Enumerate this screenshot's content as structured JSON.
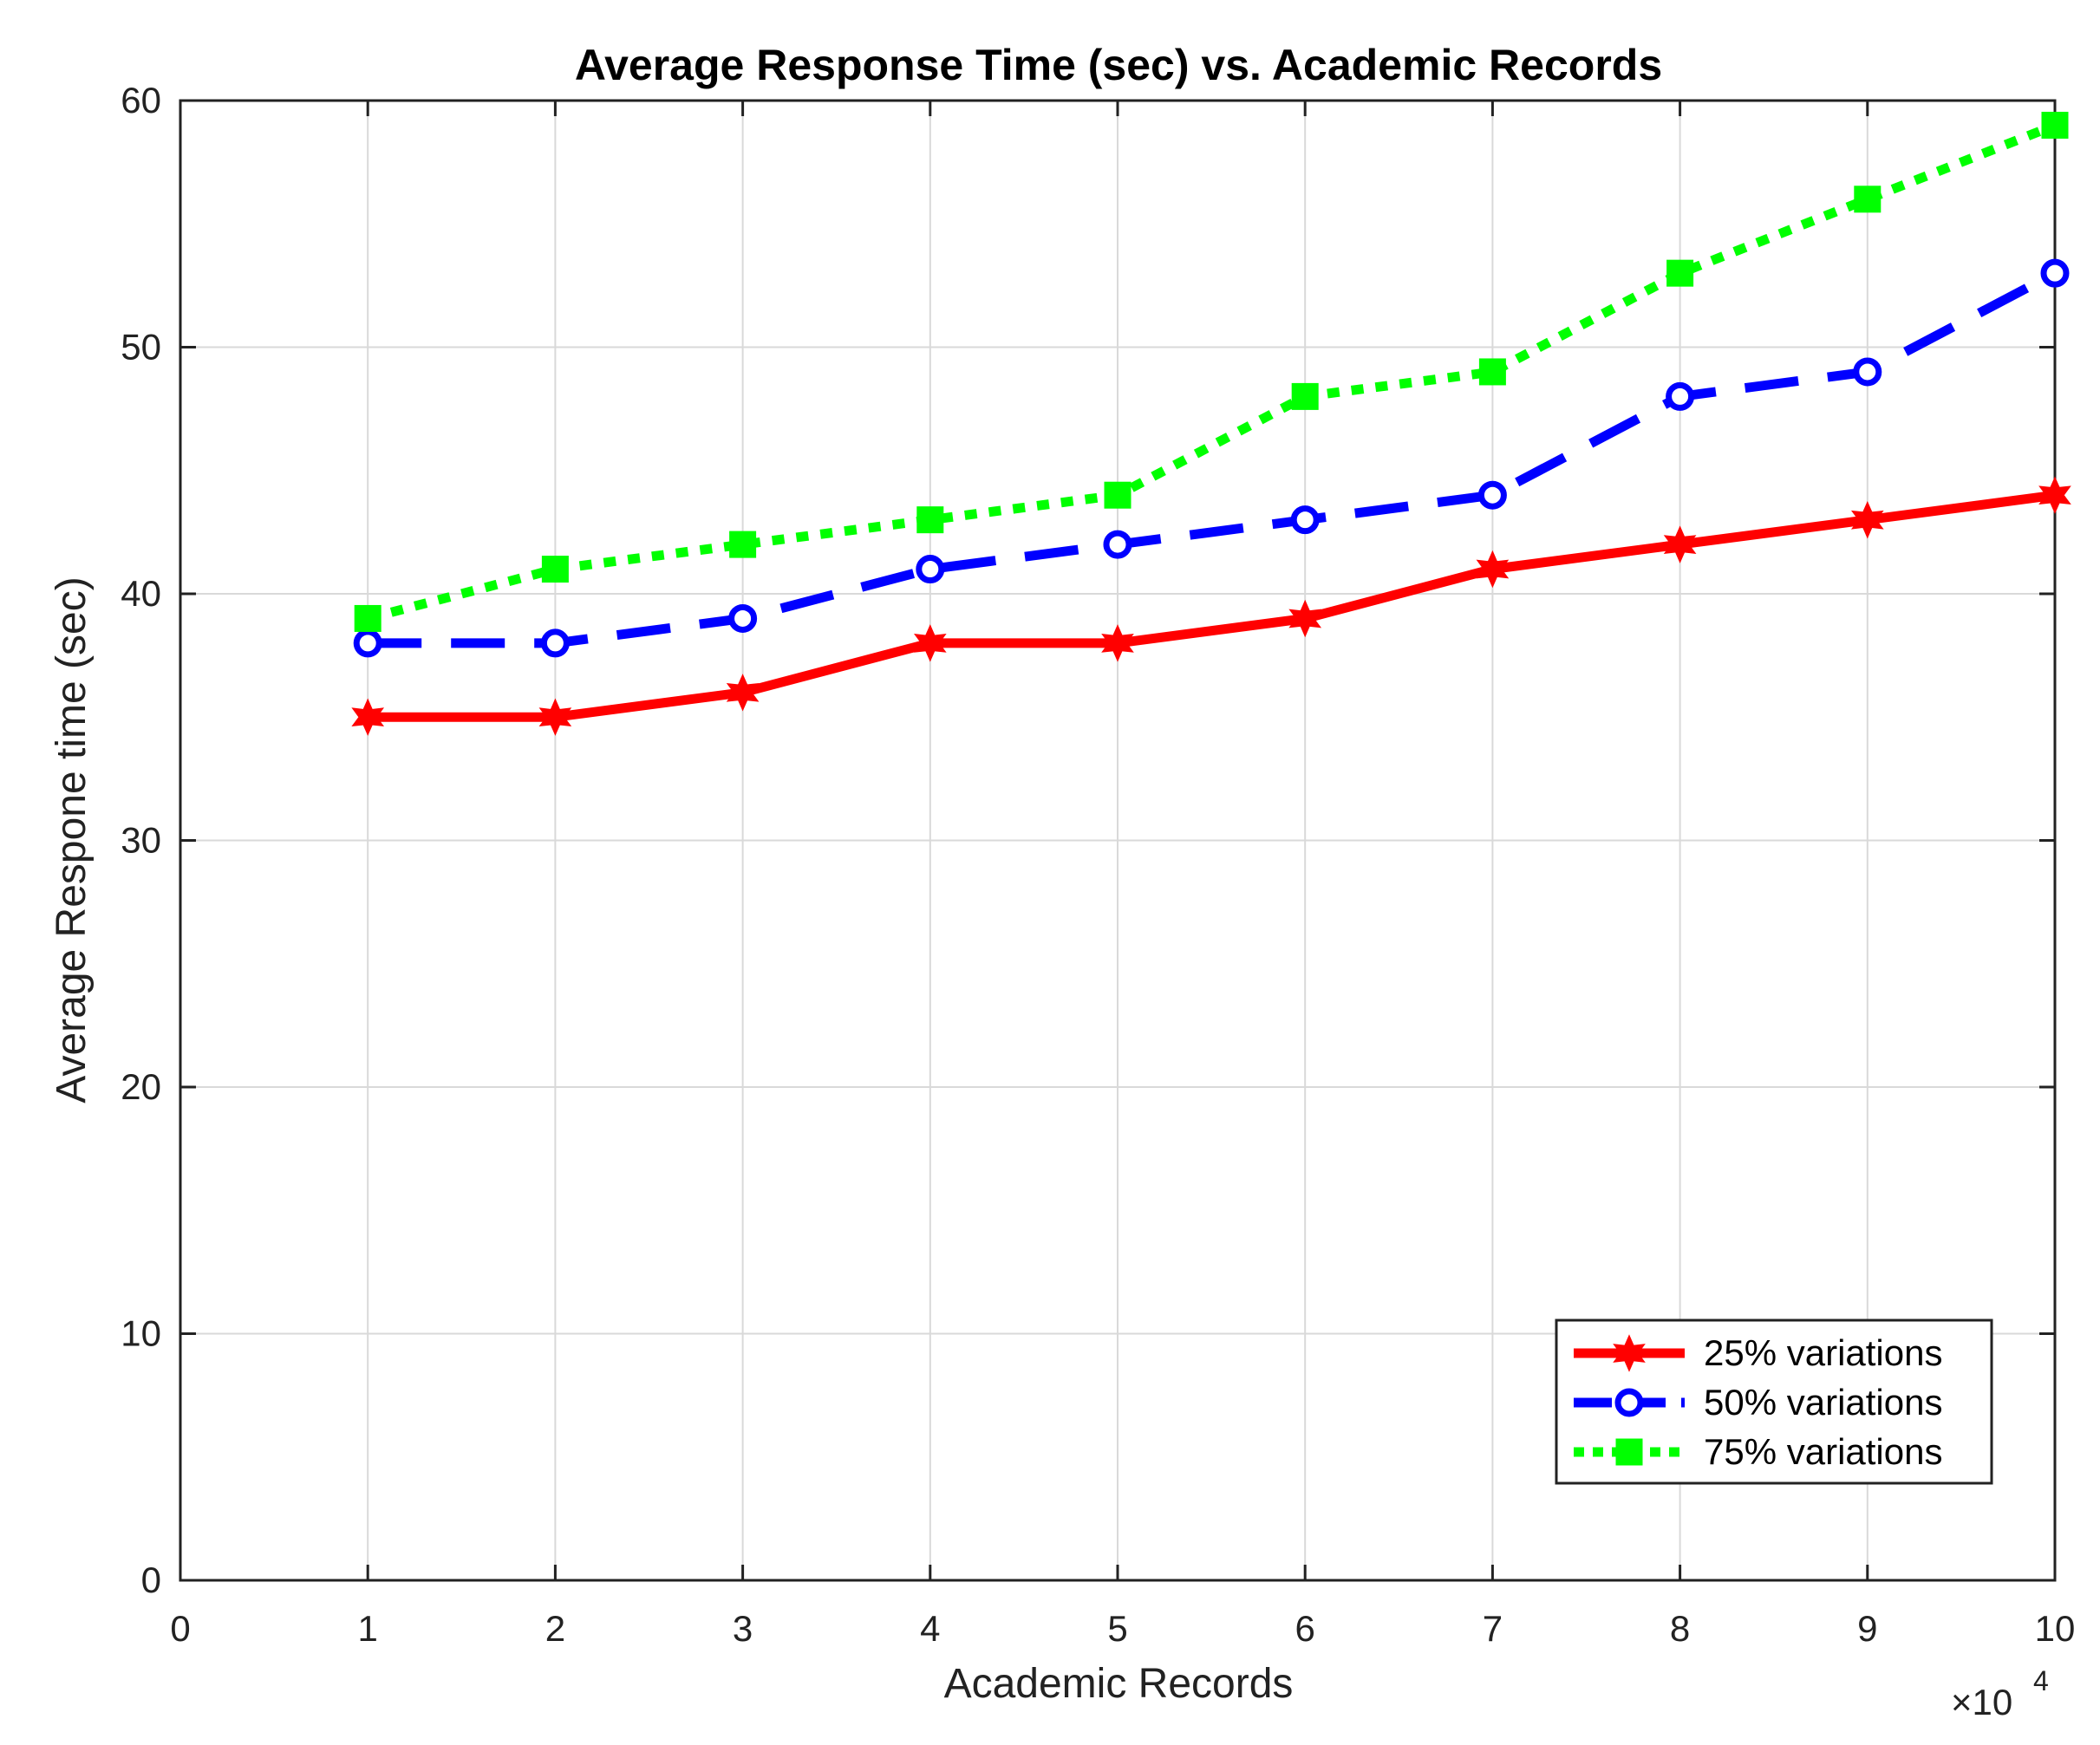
{
  "chart_data": {
    "type": "line",
    "title": "Average Response Time (sec) vs. Academic Records",
    "xlabel": "Academic Records",
    "ylabel": "Average Respone time (sec)",
    "x_multiplier_label": "×10",
    "x_multiplier_exponent": "4",
    "xlim": [
      0,
      10
    ],
    "ylim": [
      0,
      60
    ],
    "x_ticks": [
      "0",
      "1",
      "2",
      "3",
      "4",
      "5",
      "6",
      "7",
      "8",
      "9",
      "10"
    ],
    "y_ticks": [
      "0",
      "10",
      "20",
      "30",
      "40",
      "50",
      "60"
    ],
    "x": [
      1,
      2,
      3,
      4,
      5,
      6,
      7,
      8,
      9,
      10
    ],
    "grid": true,
    "legend_position": "bottom-right",
    "series": [
      {
        "name": "25% variations",
        "color": "#ff0000",
        "style": "solid",
        "marker": "hexagram",
        "values": [
          35,
          35,
          36,
          38,
          38,
          39,
          41,
          42,
          43,
          44
        ]
      },
      {
        "name": "50% variations",
        "color": "#0000ff",
        "style": "dashed",
        "marker": "circle",
        "values": [
          38,
          38,
          39,
          41,
          42,
          43,
          44,
          48,
          49,
          53
        ]
      },
      {
        "name": "75% variations",
        "color": "#00ff00",
        "style": "dotted",
        "marker": "square",
        "values": [
          39,
          41,
          42,
          43,
          44,
          48,
          49,
          53,
          56,
          59
        ]
      }
    ]
  }
}
